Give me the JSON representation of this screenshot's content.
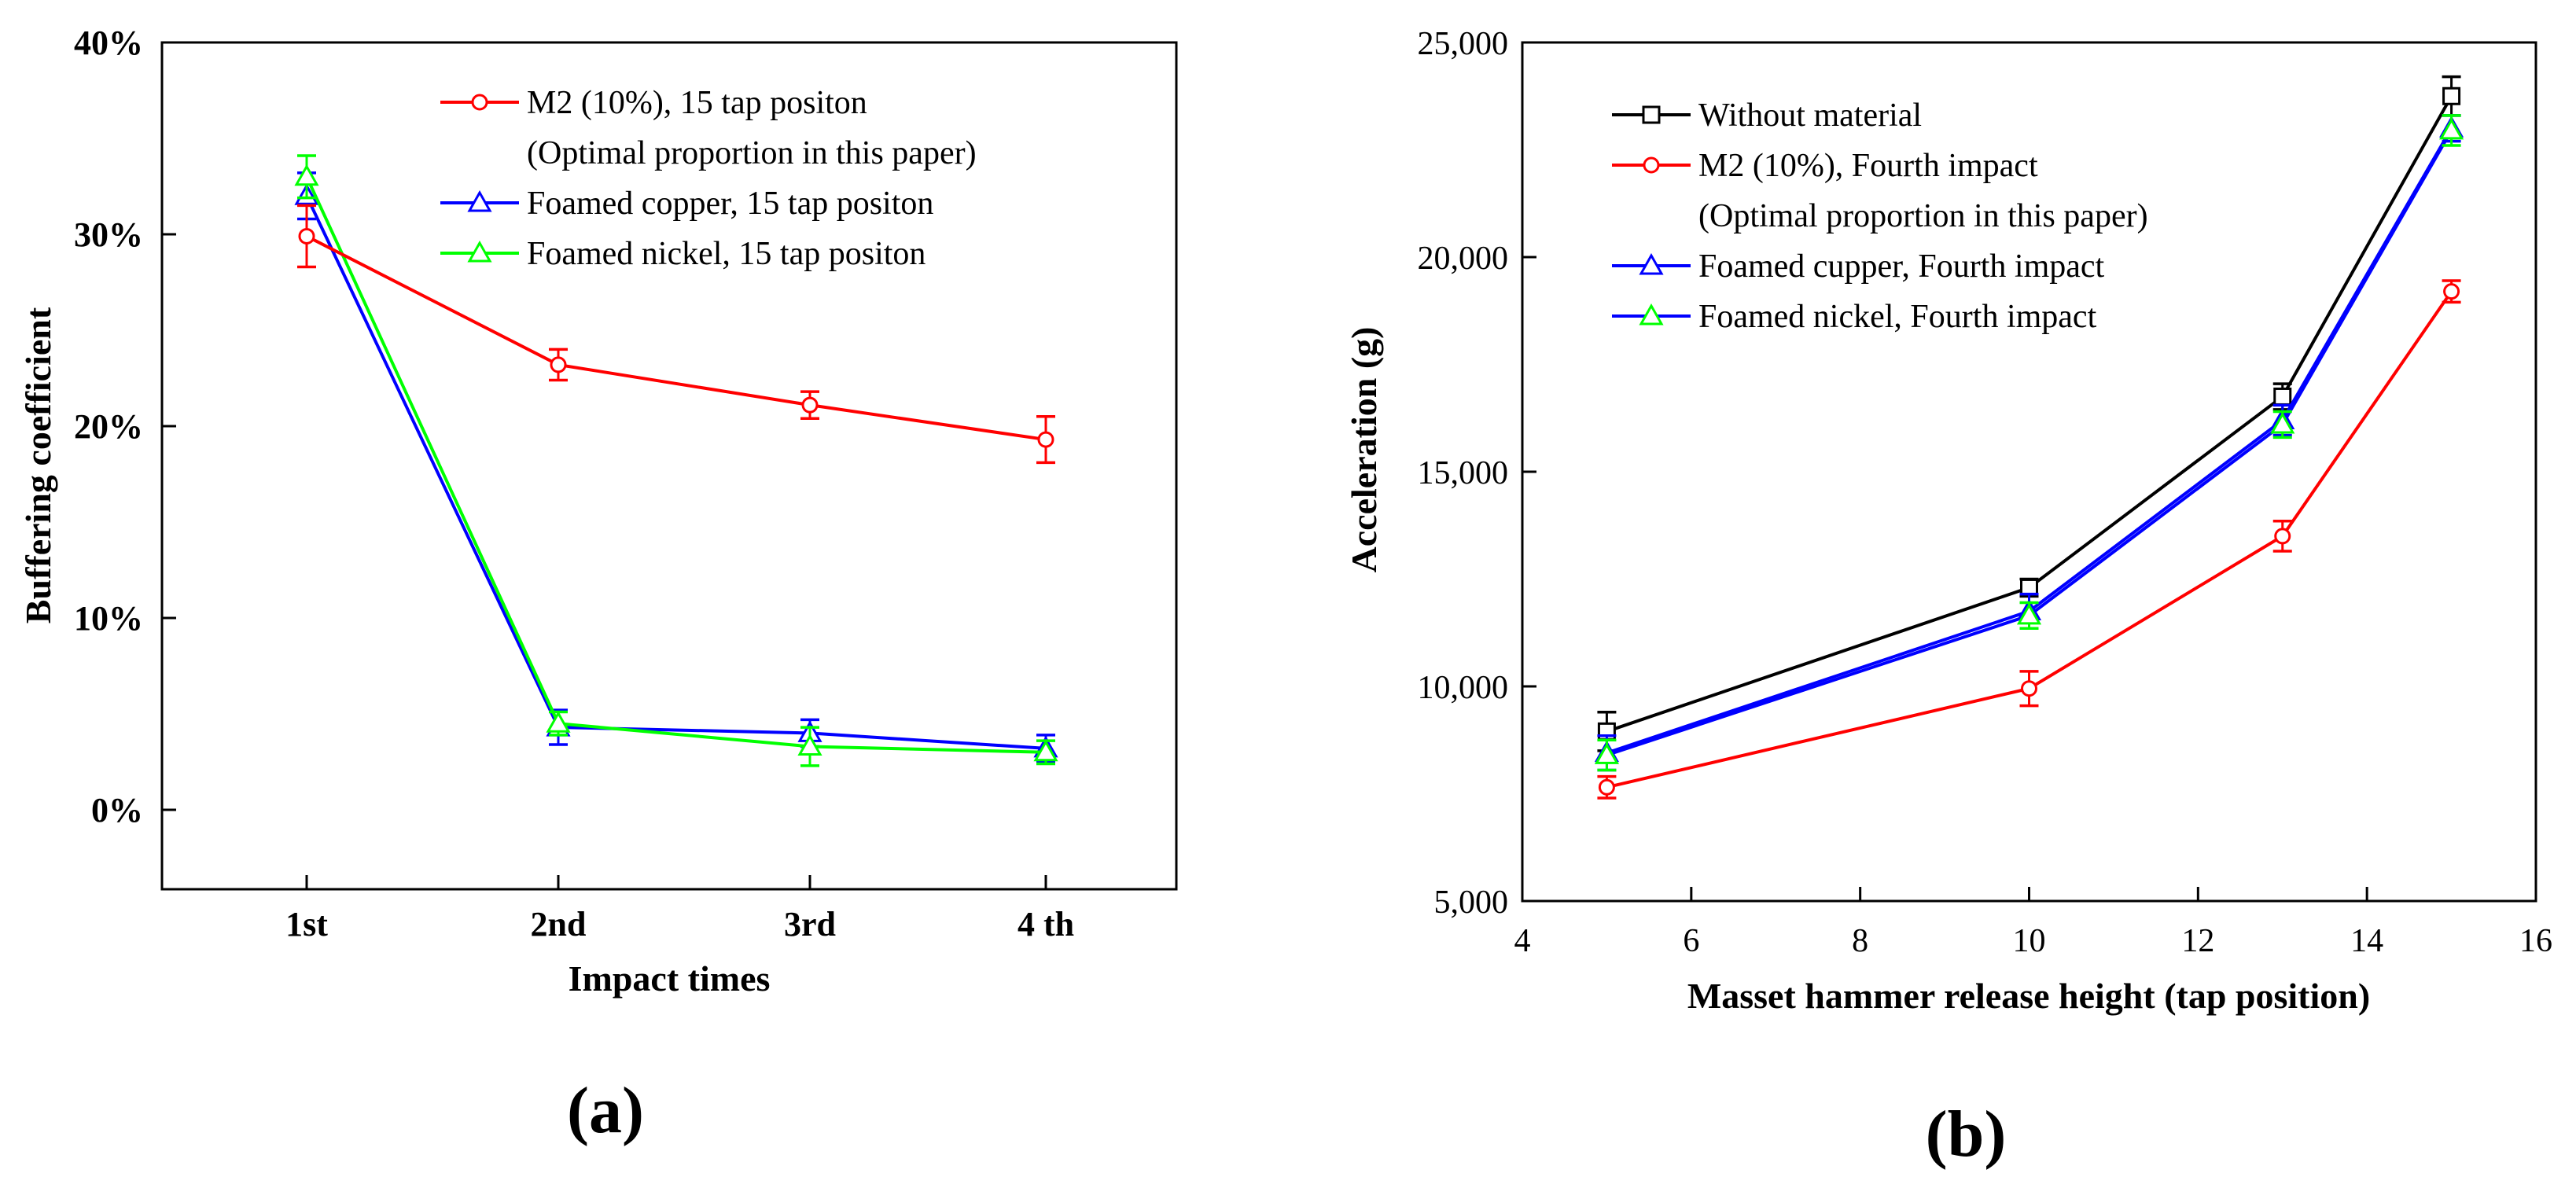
{
  "colors": {
    "axis": "#000000",
    "red": "#ff0000",
    "blue": "#0000ff",
    "green": "#00ff00",
    "black": "#000000",
    "background": "#ffffff"
  },
  "chart_data": [
    {
      "type": "line",
      "panel_label": "(a)",
      "title": "",
      "xlabel": "Impact times",
      "ylabel": "Buffering coefficient",
      "categories": [
        "1st",
        "2nd",
        "3rd",
        "4 th"
      ],
      "ylim": [
        -0.04,
        0.4
      ],
      "yticks": [
        0,
        0.1,
        0.2,
        0.3,
        0.4
      ],
      "ytick_labels": [
        "0%",
        "10%",
        "20%",
        "30%",
        "40%"
      ],
      "legend_placement": "top-right",
      "series": [
        {
          "name": "M2 (10%), 15 tap positon",
          "name_line2": "(Optimal proportion in this paper)",
          "color": "#ff0000",
          "marker": "circle",
          "values": [
            0.299,
            0.232,
            0.211,
            0.193
          ],
          "errors": [
            0.016,
            0.008,
            0.007,
            0.012
          ]
        },
        {
          "name": "Foamed  copper, 15 tap positon",
          "color": "#0000ff",
          "marker": "triangle",
          "values": [
            0.32,
            0.043,
            0.04,
            0.032
          ],
          "errors": [
            0.012,
            0.009,
            0.007,
            0.007
          ]
        },
        {
          "name": "Foamed nickel, 15 tap positon",
          "color": "#00ff00",
          "marker": "triangle",
          "values": [
            0.33,
            0.045,
            0.033,
            0.03
          ],
          "errors": [
            0.011,
            0.006,
            0.01,
            0.006
          ]
        }
      ]
    },
    {
      "type": "line",
      "panel_label": "(b)",
      "title": "",
      "xlabel": "Masset hammer release height (tap position)",
      "ylabel": "Acceleration (g)",
      "xlim": [
        4,
        16
      ],
      "xticks": [
        4,
        6,
        8,
        10,
        12,
        14,
        16
      ],
      "ylim": [
        5000,
        25000
      ],
      "yticks": [
        5000,
        10000,
        15000,
        20000,
        25000
      ],
      "ytick_labels": [
        "5,000",
        "10,000",
        "15,000",
        "20,000",
        "25,000"
      ],
      "legend_placement": "top-left",
      "x": [
        5,
        10,
        13,
        15
      ],
      "series": [
        {
          "name": "Without material",
          "color": "#000000",
          "marker": "square",
          "values": [
            8950,
            12300,
            16750,
            23750
          ],
          "errors": [
            450,
            200,
            300,
            450
          ]
        },
        {
          "name": "M2 (10%), Fourth impact",
          "name_line2": "(Optimal proportion in this paper)",
          "color": "#ff0000",
          "marker": "circle",
          "values": [
            7650,
            9950,
            13500,
            19200
          ],
          "errors": [
            250,
            400,
            350,
            250
          ]
        },
        {
          "name": "Foamed cupper, Fourth impact",
          "color": "#0000ff",
          "marker": "triangle",
          "values": [
            8450,
            11750,
            16200,
            23000
          ],
          "errors": [
            400,
            400,
            350,
            300
          ]
        },
        {
          "name": "Foamed nickel, Fourth impact",
          "color": "#0000ff",
          "marker": "triangle",
          "marker_color": "#00ff00",
          "values": [
            8400,
            11650,
            16100,
            22950
          ],
          "errors": [
            350,
            300,
            300,
            350
          ]
        }
      ]
    }
  ]
}
